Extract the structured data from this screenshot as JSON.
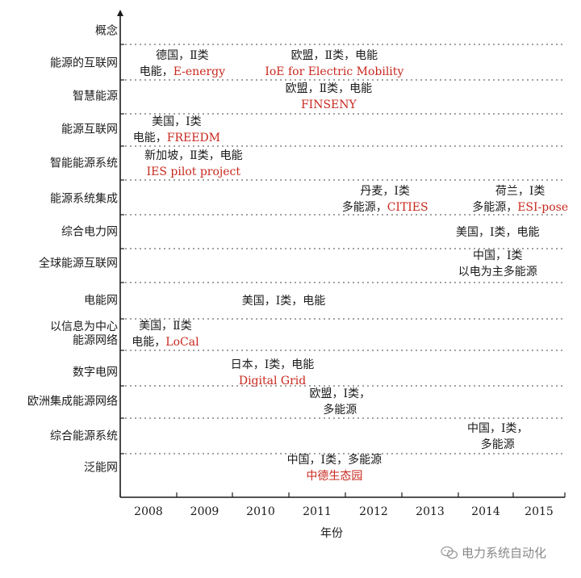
{
  "diagram": {
    "categories": [
      "概念",
      "能源的互联网",
      "智慧能源",
      "能源互联网",
      "智能能源系统",
      "能源系统集成",
      "综合电力网",
      "全球能源互联网",
      "电能网",
      "以信息为中心\n能源网络",
      "数字电网",
      "欧洲集成能源网络",
      "综合能源系统",
      "泛能网"
    ],
    "years": [
      "2008",
      "2009",
      "2010",
      "2011",
      "2012",
      "2013",
      "2014",
      "2015"
    ],
    "xlabel": "年份",
    "annotations": [
      {
        "row": 1,
        "year": 2008.6,
        "line1": "德国，Ⅱ类",
        "line2_prefix": "电能，",
        "line2_red": "E-energy"
      },
      {
        "row": 1,
        "year": 2011.3,
        "line1": "欧盟，Ⅱ类，电能",
        "line2_prefix": "",
        "line2_red": "IoE for Electric Mobility"
      },
      {
        "row": 2,
        "year": 2011.2,
        "line1": "欧盟，Ⅱ类，电能",
        "line2_prefix": "",
        "line2_red": "FINSENY"
      },
      {
        "row": 3,
        "year": 2008.5,
        "line1": "美国，Ⅰ类",
        "line2_prefix": "电能，",
        "line2_red": "FREEDM"
      },
      {
        "row": 4,
        "year": 2008.8,
        "line1": "新加坡，Ⅱ类，电能",
        "line2_prefix": "",
        "line2_red": "IES pilot project"
      },
      {
        "row": 5,
        "year": 2012.2,
        "line1": "丹麦，Ⅰ类",
        "line2_prefix": "多能源，",
        "line2_red": "CITIES"
      },
      {
        "row": 5,
        "year": 2014.6,
        "line1": "荷兰，Ⅰ类",
        "line2_prefix": "多能源，",
        "line2_red": "ESI-pose"
      },
      {
        "row": 6,
        "year": 2014.2,
        "line1": "美国，Ⅰ类，电能",
        "line2_prefix": "",
        "line2_red": ""
      },
      {
        "row": 7,
        "year": 2014.2,
        "line1": "中国，Ⅰ类",
        "line2_prefix": "以电为主多能源",
        "line2_red": ""
      },
      {
        "row": 8,
        "year": 2010.4,
        "line1": "美国，Ⅰ类，电能",
        "line2_prefix": "",
        "line2_red": ""
      },
      {
        "row": 9,
        "year": 2008.3,
        "line1": "美国，Ⅱ类",
        "line2_prefix": "电能，",
        "line2_red": "LoCal"
      },
      {
        "row": 10,
        "year": 2010.2,
        "line1": "日本，Ⅰ类，电能",
        "line2_prefix": "",
        "line2_red": "Digital Grid"
      },
      {
        "row": 11,
        "year": 2011.4,
        "line1": "欧盟，Ⅰ类，",
        "line2_prefix": "多能源",
        "line2_red": ""
      },
      {
        "row": 12,
        "year": 2014.2,
        "line1": "中国，Ⅰ类，",
        "line2_prefix": "多能源",
        "line2_red": ""
      },
      {
        "row": 13,
        "year": 2011.3,
        "line1": "中国，Ⅰ类，多能源",
        "line2_prefix": "",
        "line2_red": "中德生态园"
      }
    ],
    "colors": {
      "axis": "#1a1a1a",
      "highlight": "#c8281e",
      "grid": "#444444"
    }
  },
  "watermark": {
    "icon": "wechat-icon",
    "text": "电力系统自动化"
  }
}
